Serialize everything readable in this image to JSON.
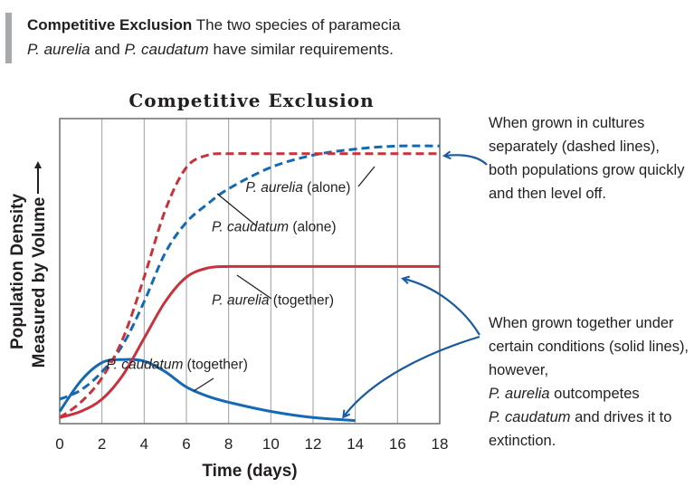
{
  "caption": {
    "title": "Competitive Exclusion",
    "text_1": " The two species of paramecia",
    "species_1": "P. aurelia",
    "text_2": " and ",
    "species_2": "P. caudatum",
    "text_3": " have similar requirements."
  },
  "notes": {
    "separate": "When grown in cultures separately (dashed lines), both populations grow quickly and then level off.",
    "together_1": "When grown together under certain conditions (solid lines), however,",
    "species_1": "P. aurelia",
    "together_2": " outcompetes",
    "species_2": "P. caudatum",
    "together_3": " and drives it to extinction."
  },
  "colors": {
    "aurelia": "#c8323c",
    "caudatum": "#1469b4",
    "grid": "#9d9fa2",
    "arrow": "#1a5a9e"
  },
  "chart_data": {
    "type": "line",
    "title": "Competitive Exclusion",
    "xlabel": "Time (days)",
    "ylabel_line1": "Population Density",
    "ylabel_line2": "Measured by Volume",
    "xlim": [
      0,
      18
    ],
    "ylim": [
      0,
      100
    ],
    "xticks": [
      0,
      2,
      4,
      6,
      8,
      10,
      12,
      14,
      16,
      18
    ],
    "grid": "vertical",
    "series": [
      {
        "name": "P. aurelia (alone)",
        "style": "dashed",
        "color": "#c8323c",
        "x": [
          0,
          1,
          2,
          3,
          4,
          5,
          6,
          7,
          8,
          10,
          12,
          14,
          16,
          18
        ],
        "y": [
          2,
          7,
          15,
          28,
          48,
          70,
          84,
          88,
          88.5,
          88.5,
          88.5,
          88.5,
          88.5,
          88.5
        ]
      },
      {
        "name": "P. caudatum (alone)",
        "style": "dashed",
        "color": "#1469b4",
        "x": [
          0,
          1,
          2,
          3,
          4,
          5,
          6,
          7,
          8,
          10,
          12,
          14,
          16,
          18
        ],
        "y": [
          8,
          11,
          17,
          26,
          40,
          56,
          66,
          72,
          77,
          84,
          88,
          90,
          91,
          91
        ]
      },
      {
        "name": "P. aurelia (together)",
        "style": "solid",
        "color": "#c8323c",
        "x": [
          0,
          1,
          2,
          3,
          4,
          5,
          6,
          7,
          8,
          10,
          12,
          14,
          16,
          18
        ],
        "y": [
          2,
          4,
          8,
          16,
          28,
          40,
          48,
          51,
          51.5,
          51.5,
          51.5,
          51.5,
          51.5,
          51.5
        ]
      },
      {
        "name": "P. caudatum (together)",
        "style": "solid",
        "color": "#1469b4",
        "x": [
          0,
          1,
          2,
          3,
          4,
          5,
          6,
          7,
          8,
          10,
          12,
          14
        ],
        "y": [
          4,
          14,
          20,
          21,
          20.5,
          17,
          12,
          9,
          7,
          4,
          2,
          1
        ]
      }
    ],
    "annotations": [
      {
        "species": "P. aurelia",
        "label": " (alone)",
        "x": 8.8,
        "y": 76
      },
      {
        "species": "P. caudatum",
        "label": " (alone)",
        "x": 7.2,
        "y": 63
      },
      {
        "species": "P. aurelia",
        "label": " (together)",
        "x": 7.2,
        "y": 39
      },
      {
        "species": "P. caudatum",
        "label": " (together)",
        "x": 2.2,
        "y": 18
      }
    ]
  }
}
